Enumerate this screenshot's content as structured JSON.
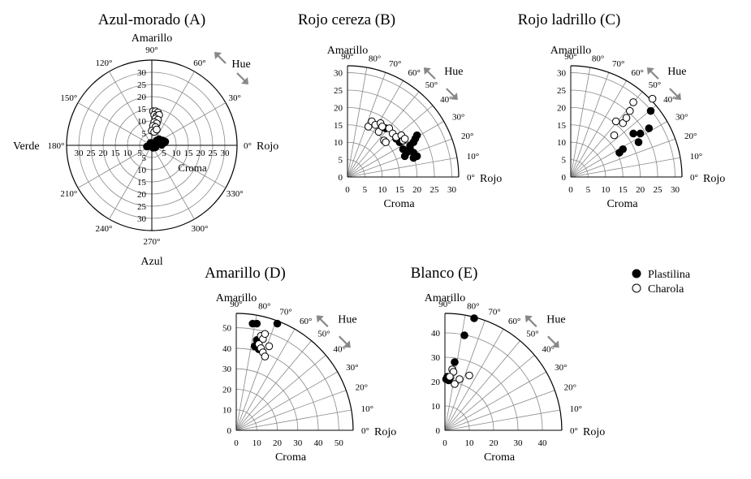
{
  "chart_data": [
    {
      "id": "A",
      "type": "scatter",
      "kind": "full-polar",
      "title": "Azul-morado (A)",
      "top_label": "Amarillo",
      "bottom_label": "Azul",
      "left_label": "Verde",
      "right_label": "Rojo",
      "xlabel": "Croma",
      "hue_label": "Hue",
      "rlim": [
        0,
        35
      ],
      "rticks": [
        5,
        10,
        15,
        20,
        25,
        30
      ],
      "angle_ticks": [
        "0°",
        "30°",
        "60°",
        "90°",
        "120°",
        "150°",
        "180°",
        "210°",
        "240°",
        "270°",
        "300°",
        "330°"
      ],
      "series": [
        {
          "name": "Plastilina",
          "marker": "filled",
          "points": [
            [
              -1,
              0
            ],
            [
              -0.5,
              1
            ],
            [
              0,
              -0.5
            ],
            [
              0.5,
              0.5
            ],
            [
              1,
              1
            ],
            [
              1.5,
              0.3
            ],
            [
              2,
              1
            ],
            [
              2.5,
              0.5
            ],
            [
              3,
              1.5
            ],
            [
              3.5,
              0.8
            ],
            [
              4,
              1.2
            ],
            [
              4.5,
              2
            ],
            [
              5,
              1
            ],
            [
              5.5,
              1.5
            ],
            [
              2,
              2
            ],
            [
              3,
              2.5
            ],
            [
              -2,
              -0.5
            ],
            [
              0.5,
              -1
            ],
            [
              1.5,
              -0.8
            ],
            [
              4,
              0.2
            ]
          ]
        },
        {
          "name": "Charola",
          "marker": "open",
          "points": [
            [
              0.5,
              14
            ],
            [
              1.5,
              14
            ],
            [
              2.5,
              13.5
            ],
            [
              1,
              12.5
            ],
            [
              2,
              12
            ],
            [
              3,
              12.5
            ],
            [
              1.5,
              11
            ],
            [
              2.5,
              10.5
            ],
            [
              1,
              9.5
            ],
            [
              2,
              9
            ],
            [
              0.5,
              8
            ],
            [
              1.5,
              7.5
            ],
            [
              0,
              6
            ],
            [
              1,
              5.5
            ],
            [
              2,
              6.5
            ]
          ]
        }
      ]
    },
    {
      "id": "B",
      "type": "scatter",
      "kind": "quadrant",
      "title": "Rojo cereza (B)",
      "ylabel": "Amarillo",
      "xlabel": "Croma",
      "right_label": "Rojo",
      "hue_label": "Hue",
      "xlim": [
        0,
        32
      ],
      "ylim": [
        0,
        32
      ],
      "xticks": [
        0,
        5,
        10,
        15,
        20,
        25,
        30
      ],
      "yticks": [
        0,
        5,
        10,
        15,
        20,
        25,
        30
      ],
      "angle_ticks": [
        "0°",
        "10°",
        "20°",
        "30°",
        "40°",
        "50°",
        "60°",
        "70°",
        "80°",
        "90°"
      ],
      "series": [
        {
          "name": "Plastilina",
          "marker": "filled",
          "points": [
            [
              11,
              14
            ],
            [
              14,
              11
            ],
            [
              15,
              10
            ],
            [
              16,
              8
            ],
            [
              17,
              7
            ],
            [
              16.5,
              6
            ],
            [
              18,
              9
            ],
            [
              19,
              10
            ],
            [
              19.5,
              11
            ],
            [
              20,
              12
            ],
            [
              19,
              7
            ],
            [
              20,
              6
            ],
            [
              19,
              5.5
            ],
            [
              18,
              8
            ]
          ]
        },
        {
          "name": "Charola",
          "marker": "open",
          "points": [
            [
              6,
              14.5
            ],
            [
              7,
              16
            ],
            [
              8,
              15
            ],
            [
              9,
              13
            ],
            [
              9.5,
              15.5
            ],
            [
              10,
              14.5
            ],
            [
              10.5,
              10.5
            ],
            [
              11,
              10
            ],
            [
              12,
              14
            ],
            [
              13,
              12.5
            ],
            [
              14,
              11.5
            ],
            [
              15.5,
              12
            ],
            [
              16,
              10.5
            ],
            [
              16.5,
              11
            ]
          ]
        }
      ]
    },
    {
      "id": "C",
      "type": "scatter",
      "kind": "quadrant",
      "title": "Rojo ladrillo (C)",
      "ylabel": "Amarillo",
      "xlabel": "Croma",
      "right_label": "Rojo",
      "hue_label": "Hue",
      "xlim": [
        0,
        32
      ],
      "ylim": [
        0,
        32
      ],
      "xticks": [
        0,
        5,
        10,
        15,
        20,
        25,
        30
      ],
      "yticks": [
        0,
        5,
        10,
        15,
        20,
        25,
        30
      ],
      "angle_ticks": [
        "0°",
        "10°",
        "20°",
        "30°",
        "40°",
        "50°",
        "60°",
        "70°",
        "80°",
        "90°"
      ],
      "series": [
        {
          "name": "Plastilina",
          "marker": "filled",
          "points": [
            [
              14,
              7
            ],
            [
              15,
              8
            ],
            [
              18,
              12.5
            ],
            [
              19.5,
              10
            ],
            [
              20,
              12.5
            ],
            [
              22.5,
              14
            ],
            [
              23,
              19
            ]
          ]
        },
        {
          "name": "Charola",
          "marker": "open",
          "points": [
            [
              12.5,
              12
            ],
            [
              13,
              16
            ],
            [
              15,
              15.5
            ],
            [
              16,
              17
            ],
            [
              17,
              19
            ],
            [
              18,
              21.5
            ],
            [
              23.5,
              22.5
            ]
          ]
        }
      ]
    },
    {
      "id": "D",
      "type": "scatter",
      "kind": "quadrant",
      "title": "Amarillo (D)",
      "ylabel": "Amarillo",
      "xlabel": "Croma",
      "right_label": "Rojo",
      "hue_label": "Hue",
      "xlim": [
        0,
        57
      ],
      "ylim": [
        0,
        57
      ],
      "xticks": [
        0,
        10,
        20,
        30,
        40,
        50
      ],
      "yticks": [
        0,
        10,
        20,
        30,
        40,
        50
      ],
      "angle_ticks": [
        "0°",
        "10°",
        "20°",
        "30°",
        "40°",
        "50°",
        "60°",
        "70°",
        "80°",
        "90°"
      ],
      "series": [
        {
          "name": "Plastilina",
          "marker": "filled",
          "points": [
            [
              8,
              52
            ],
            [
              10,
              52
            ],
            [
              20,
              52
            ],
            [
              10,
              44
            ],
            [
              9,
              41
            ],
            [
              11,
              39.5
            ]
          ]
        },
        {
          "name": "Charola",
          "marker": "open",
          "points": [
            [
              12,
              46
            ],
            [
              13,
              44.5
            ],
            [
              14,
              47
            ],
            [
              11,
              42
            ],
            [
              12,
              40
            ],
            [
              13,
              38
            ],
            [
              14,
              36
            ],
            [
              16,
              41
            ]
          ]
        }
      ]
    },
    {
      "id": "E",
      "type": "scatter",
      "kind": "quadrant",
      "title": "Blanco (E)",
      "ylabel": "Amarillo",
      "xlabel": "Croma",
      "right_label": "Rojo",
      "hue_label": "Hue",
      "xlim": [
        0,
        48
      ],
      "ylim": [
        0,
        48
      ],
      "xticks": [
        0,
        10,
        20,
        30,
        40
      ],
      "yticks": [
        0,
        10,
        20,
        30,
        40
      ],
      "angle_ticks": [
        "0°",
        "10°",
        "20°",
        "30°",
        "40°",
        "50°",
        "60°",
        "70°",
        "80°",
        "90°"
      ],
      "series": [
        {
          "name": "Plastilina",
          "marker": "filled",
          "points": [
            [
              12,
              46
            ],
            [
              8,
              39
            ],
            [
              4,
              28
            ],
            [
              1,
              22
            ],
            [
              2,
              21.5
            ],
            [
              1.5,
              20.5
            ],
            [
              0.5,
              21
            ]
          ]
        },
        {
          "name": "Charola",
          "marker": "open",
          "points": [
            [
              3,
              25
            ],
            [
              3.5,
              24
            ],
            [
              6,
              21
            ],
            [
              10,
              22.5
            ],
            [
              4,
              19
            ],
            [
              2,
              22
            ]
          ]
        }
      ]
    }
  ],
  "legend": {
    "items": [
      {
        "label": "Plastilina",
        "marker": "filled"
      },
      {
        "label": "Charola",
        "marker": "open"
      }
    ]
  }
}
